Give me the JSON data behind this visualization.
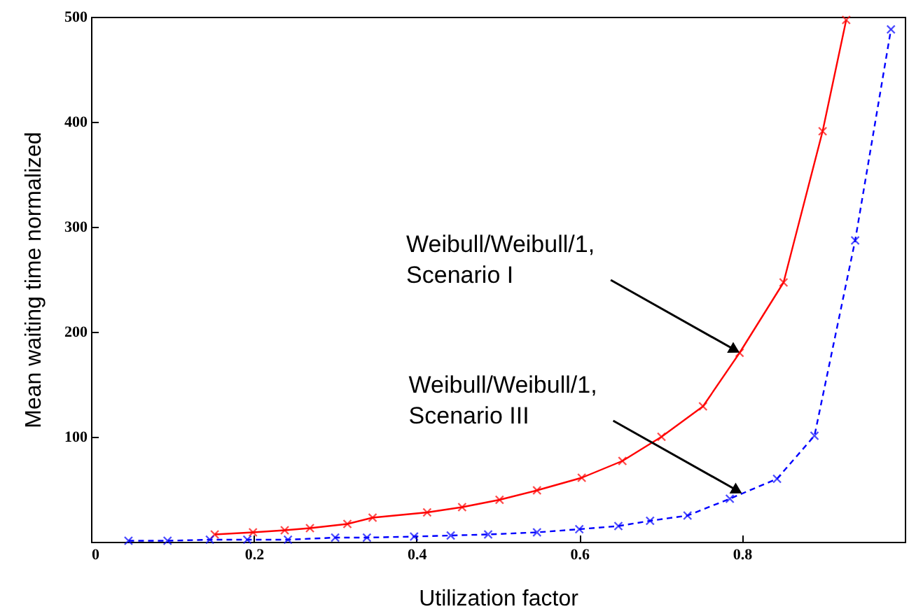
{
  "chart_data": {
    "type": "line",
    "xlabel": "Utilization factor",
    "ylabel": "Mean waiting time normalized",
    "xlim": [
      0,
      1
    ],
    "ylim": [
      0,
      500
    ],
    "xticks": [
      0,
      0.2,
      0.4,
      0.6,
      0.8
    ],
    "yticks": [
      100,
      200,
      300,
      400,
      500
    ],
    "grid": false,
    "series": [
      {
        "color": "#ff0000",
        "line_style": "solid",
        "marker": "cross",
        "x": [
          0.152,
          0.199,
          0.238,
          0.269,
          0.315,
          0.346,
          0.413,
          0.456,
          0.502,
          0.548,
          0.603,
          0.653,
          0.701,
          0.752,
          0.797,
          0.851,
          0.899,
          0.928
        ],
        "values": [
          7,
          9,
          11,
          13,
          17,
          23,
          28,
          33,
          40,
          49,
          61,
          77,
          100,
          129,
          180,
          247,
          391,
          497
        ]
      },
      {
        "color": "#0000ff",
        "line_style": "dashed",
        "marker": "cross",
        "x": [
          0.046,
          0.094,
          0.146,
          0.192,
          0.242,
          0.3,
          0.339,
          0.397,
          0.442,
          0.488,
          0.548,
          0.6,
          0.648,
          0.687,
          0.733,
          0.785,
          0.843,
          0.889,
          0.939,
          0.983
        ],
        "values": [
          1,
          1,
          2,
          2,
          2,
          4,
          4,
          5,
          6,
          7,
          9,
          12,
          15,
          20,
          25,
          41,
          60,
          101,
          287,
          488
        ]
      }
    ],
    "annotations": [
      {
        "text": "Weibull/Weibull/1,\nScenario I",
        "x": 0.797,
        "y": 180
      },
      {
        "text": "Weibull/Weibull/1,\nScenario III",
        "x": 0.8,
        "y": 46
      }
    ]
  }
}
